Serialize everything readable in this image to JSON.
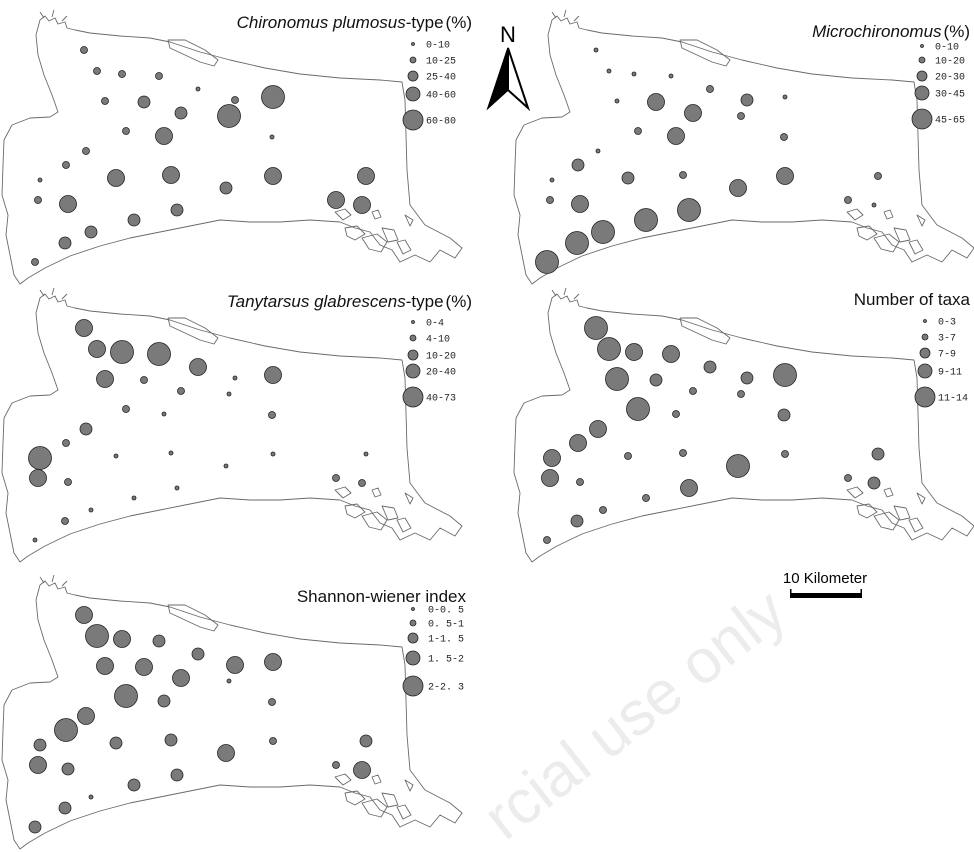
{
  "figure": {
    "north_label": "N",
    "scale_label": "10 Kilometer",
    "watermark": "rcial use only"
  },
  "colors": {
    "symbol_fill": "#7a7a7a",
    "symbol_stroke": "#222222",
    "outline": "#6a6a6a",
    "background": "#ffffff"
  },
  "panels": [
    {
      "title_italic": "Chironomus plumosus",
      "title_plain": "-type",
      "title_unit": "(%)",
      "legend": [
        "0-10",
        "10-25",
        "25-40",
        "40-60",
        "60-80"
      ],
      "site_classes": [
        1,
        1,
        1,
        1,
        0,
        1,
        2,
        2,
        1,
        4,
        1,
        3,
        4,
        0,
        1,
        1,
        0,
        3,
        3,
        2,
        3,
        1,
        3,
        2,
        2,
        3,
        3,
        3,
        2,
        2,
        1
      ]
    },
    {
      "title_italic": "Microchironomus",
      "title_plain": "",
      "title_unit": "(%)",
      "legend": [
        "0-10",
        "10-20",
        "20-30",
        "30-45",
        "45-65"
      ],
      "site_classes": [
        0,
        0,
        0,
        0,
        1,
        0,
        3,
        3,
        2,
        0,
        1,
        3,
        1,
        1,
        0,
        2,
        0,
        2,
        1,
        3,
        3,
        1,
        3,
        4,
        4,
        1,
        1,
        0,
        4,
        4,
        4
      ]
    },
    {
      "title_italic": "Tanytarsus glabrescens",
      "title_plain": "-type",
      "title_unit": "(%)",
      "legend": [
        "0-4",
        "4-10",
        "10-20",
        "20-40",
        "40-73"
      ],
      "site_classes": [
        3,
        3,
        4,
        4,
        3,
        3,
        1,
        1,
        0,
        3,
        1,
        0,
        0,
        1,
        2,
        1,
        4,
        0,
        0,
        0,
        0,
        3,
        1,
        0,
        0,
        1,
        0,
        1,
        0,
        1,
        0
      ]
    },
    {
      "title_italic": "",
      "title_plain": "Number of taxa",
      "title_unit": "",
      "legend": [
        "0-3",
        "3-7",
        "7-9",
        "9-11",
        "11-14"
      ],
      "site_classes": [
        4,
        4,
        3,
        3,
        2,
        4,
        2,
        1,
        2,
        4,
        4,
        1,
        1,
        2,
        3,
        3,
        3,
        1,
        1,
        4,
        1,
        3,
        1,
        1,
        3,
        1,
        2,
        2,
        1,
        2,
        1
      ]
    },
    {
      "title_italic": "",
      "title_plain": "Shannon-wiener index",
      "title_unit": "",
      "legend": [
        "0-0. 5",
        "0. 5-1",
        "1-1. 5",
        "1. 5-2",
        "2-2. 3"
      ],
      "site_classes": [
        3,
        4,
        3,
        2,
        2,
        3,
        3,
        3,
        3,
        3,
        4,
        2,
        0,
        1,
        3,
        4,
        2,
        2,
        2,
        3,
        1,
        3,
        2,
        2,
        2,
        1,
        2,
        3,
        0,
        2,
        2
      ]
    }
  ]
}
